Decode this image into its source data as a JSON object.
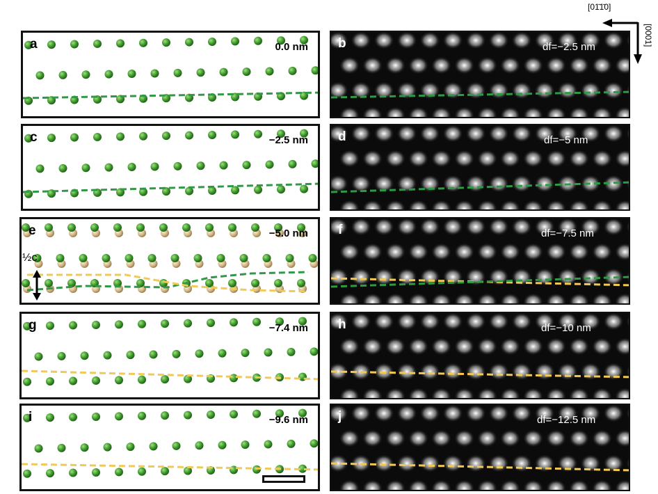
{
  "axes": {
    "horizontal": "[01̄1̄0]",
    "vertical": "[0001]"
  },
  "half_c": "½c",
  "panels": [
    {
      "label": "a",
      "kind": "sim",
      "caption": "0.0 nm",
      "lines": [
        "green"
      ]
    },
    {
      "label": "b",
      "kind": "exp",
      "caption": "df=−2.5 nm",
      "lines": [
        "green"
      ]
    },
    {
      "label": "c",
      "kind": "sim",
      "caption": "−2.5 nm",
      "lines": [
        "green"
      ]
    },
    {
      "label": "d",
      "kind": "exp",
      "caption": "df=−5 nm",
      "lines": [
        "green"
      ]
    },
    {
      "label": "e",
      "kind": "sim",
      "caption": "−5.0 nm",
      "lines": [
        "green",
        "yellow"
      ]
    },
    {
      "label": "f",
      "kind": "exp",
      "caption": "df=−7.5 nm",
      "lines": [
        "yellow",
        "green"
      ]
    },
    {
      "label": "g",
      "kind": "sim",
      "caption": "−7.4 nm",
      "lines": [
        "yellow"
      ]
    },
    {
      "label": "h",
      "kind": "exp",
      "caption": "df=−10 nm",
      "lines": [
        "yellow"
      ]
    },
    {
      "label": "i",
      "kind": "sim",
      "caption": "−9.6 nm",
      "lines": [
        "yellow"
      ]
    },
    {
      "label": "j",
      "kind": "exp",
      "caption": "df=−12.5 nm",
      "lines": [
        "yellow"
      ]
    }
  ],
  "colors": {
    "green_atom": "#3f9a2c",
    "tan_atom": "#d8bb8a",
    "green_line": "#2e9a45",
    "yellow_line": "#f2c955"
  }
}
